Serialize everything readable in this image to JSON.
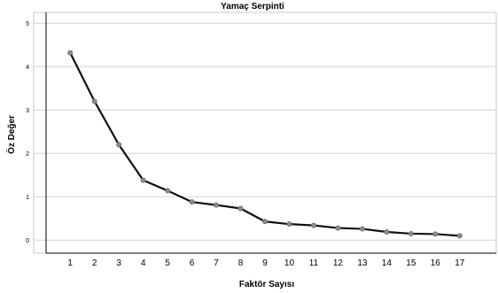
{
  "chart_data": {
    "type": "line",
    "title": "Yamaç Serpinti",
    "xlabel": "Faktör Sayısı",
    "ylabel": "Öz Değer",
    "x": [
      1,
      2,
      3,
      4,
      5,
      6,
      7,
      8,
      9,
      10,
      11,
      12,
      13,
      14,
      15,
      16,
      17
    ],
    "values": [
      4.32,
      3.2,
      2.2,
      1.38,
      1.14,
      0.88,
      0.81,
      0.73,
      0.43,
      0.37,
      0.34,
      0.28,
      0.26,
      0.19,
      0.15,
      0.14,
      0.1
    ],
    "xlim": [
      -0.5,
      18.5
    ],
    "ylim": [
      -0.3,
      5.25
    ],
    "yticks": [
      0,
      1,
      2,
      3,
      4,
      5
    ],
    "grid": "horizontal",
    "legend": "none",
    "colors": {
      "line": "#111111",
      "marker": "#8c8c8c",
      "grid": "#d4d4d4"
    }
  }
}
